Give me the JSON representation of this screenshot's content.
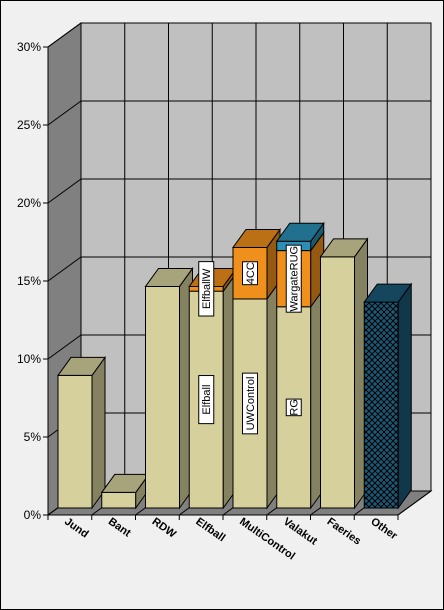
{
  "chart_data": {
    "type": "bar",
    "stacked": true,
    "three_d": true,
    "categories": [
      "Jund",
      "Bant",
      "RDW",
      "Elfball",
      "MultiControl",
      "Valakut",
      "Faeries",
      "Other"
    ],
    "yticks": [
      "0%",
      "5%",
      "10%",
      "15%",
      "20%",
      "25%",
      "30%"
    ],
    "ylim": [
      0,
      30
    ],
    "grid": true,
    "legend": "none",
    "title": "",
    "xlabel": "",
    "ylabel": "",
    "bars": [
      {
        "category": "Jund",
        "segments": [
          {
            "label": "",
            "value": 8.5,
            "color": "#d6d19c"
          }
        ]
      },
      {
        "category": "Bant",
        "segments": [
          {
            "label": "",
            "value": 1.0,
            "color": "#d6d19c"
          }
        ]
      },
      {
        "category": "RDW",
        "segments": [
          {
            "label": "",
            "value": 14.2,
            "color": "#d6d19c"
          }
        ]
      },
      {
        "category": "Elfball",
        "segments": [
          {
            "label": "Elfball",
            "value": 13.9,
            "color": "#d6d19c"
          },
          {
            "label": "ElfballW",
            "value": 0.3,
            "color": "#f0901c"
          }
        ]
      },
      {
        "category": "MultiControl",
        "segments": [
          {
            "label": "UWControl",
            "value": 13.4,
            "color": "#d6d19c"
          },
          {
            "label": "4CC",
            "value": 3.3,
            "color": "#f0901c"
          }
        ]
      },
      {
        "category": "Valakut",
        "segments": [
          {
            "label": "RG",
            "value": 12.9,
            "color": "#d6d19c"
          },
          {
            "label": "WargateRUG",
            "value": 3.6,
            "color": "#f0901c"
          },
          {
            "label": "",
            "value": 0.6,
            "color": "#2a8fb5"
          }
        ]
      },
      {
        "category": "Faeries",
        "segments": [
          {
            "label": "",
            "value": 16.1,
            "color": "#d6d19c"
          }
        ]
      },
      {
        "category": "Other",
        "segments": [
          {
            "label": "",
            "value": 13.2,
            "color": "#1a5a78",
            "pattern": "crosshatch"
          }
        ]
      }
    ]
  }
}
